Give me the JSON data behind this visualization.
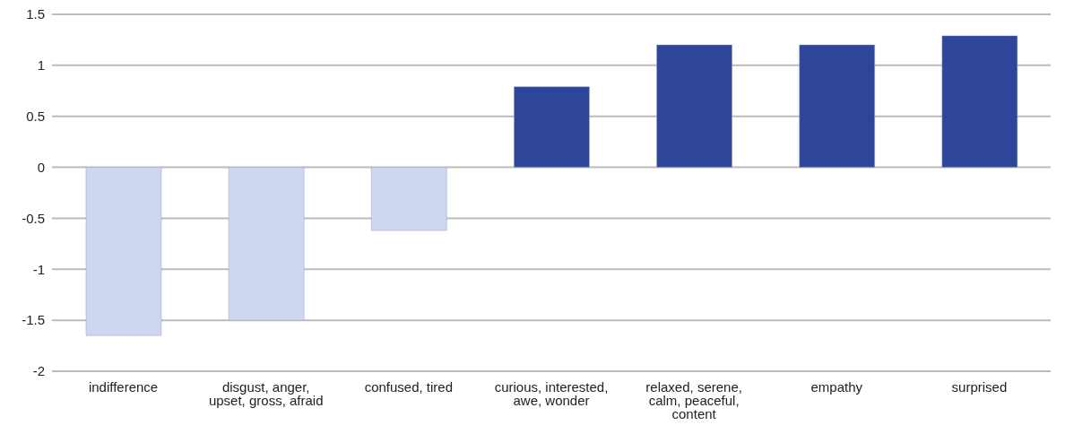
{
  "chart_data": {
    "type": "bar",
    "categories": [
      "indifference",
      "disgust, anger, upset, gross, afraid",
      "confused, tired",
      "curious, interested, awe, wonder",
      "relaxed, serene, calm, peaceful, content",
      "empathy",
      "surprised"
    ],
    "values": [
      -1.65,
      -1.5,
      -0.62,
      0.79,
      1.2,
      1.2,
      1.29
    ],
    "colors": [
      "#cfd6f0",
      "#cfd6f0",
      "#cfd6f0",
      "#2e4699",
      "#2e4699",
      "#2e4699",
      "#2e4699"
    ],
    "ylim": [
      -2,
      1.5
    ],
    "yticks": [
      -2,
      -1.5,
      -1,
      -0.5,
      0,
      0.5,
      1,
      1.5
    ],
    "grid": "y",
    "legend": false
  }
}
